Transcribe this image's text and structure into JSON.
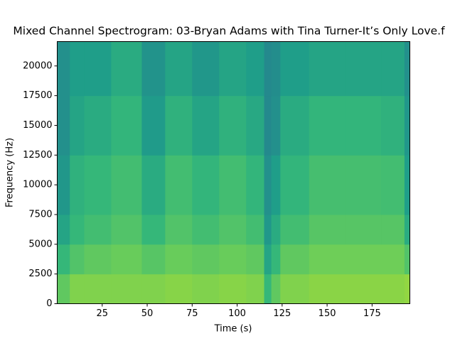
{
  "chart_data": {
    "type": "spectrogram",
    "title": "Mixed Channel Spectrogram: 03-Bryan Adams with Tina Turner-It’s Only Love.f",
    "xlabel": "Time (s)",
    "ylabel": "Frequency (Hz)",
    "xlim": [
      0,
      196
    ],
    "ylim": [
      0,
      22050
    ],
    "xticks": [
      25,
      50,
      75,
      100,
      125,
      150,
      175
    ],
    "yticks": [
      0,
      2500,
      5000,
      7500,
      10000,
      12500,
      15000,
      17500,
      20000
    ],
    "time_edges": [
      0,
      7,
      15,
      30,
      47,
      60,
      75,
      90,
      105,
      115,
      119,
      124,
      140,
      160,
      180,
      193,
      196
    ],
    "freq_edges": [
      0,
      2500,
      5000,
      7500,
      12500,
      17500,
      22050
    ],
    "colormap": [
      "#31688e",
      "#26828e",
      "#1f9e89",
      "#35b779",
      "#6ece58",
      "#b5de2b"
    ],
    "z": [
      [
        0.75,
        0.6,
        0.45,
        0.35,
        0.3,
        0.3
      ],
      [
        0.85,
        0.7,
        0.6,
        0.55,
        0.45,
        0.4
      ],
      [
        0.85,
        0.75,
        0.65,
        0.6,
        0.5,
        0.4
      ],
      [
        0.85,
        0.78,
        0.7,
        0.65,
        0.58,
        0.5
      ],
      [
        0.85,
        0.72,
        0.6,
        0.5,
        0.38,
        0.32
      ],
      [
        0.87,
        0.78,
        0.7,
        0.65,
        0.55,
        0.45
      ],
      [
        0.85,
        0.75,
        0.65,
        0.58,
        0.45,
        0.35
      ],
      [
        0.87,
        0.78,
        0.7,
        0.65,
        0.55,
        0.45
      ],
      [
        0.85,
        0.75,
        0.65,
        0.58,
        0.48,
        0.4
      ],
      [
        0.6,
        0.45,
        0.35,
        0.3,
        0.25,
        0.25
      ],
      [
        0.75,
        0.6,
        0.5,
        0.4,
        0.3,
        0.28
      ],
      [
        0.85,
        0.75,
        0.65,
        0.58,
        0.5,
        0.4
      ],
      [
        0.88,
        0.8,
        0.72,
        0.66,
        0.58,
        0.45
      ],
      [
        0.88,
        0.8,
        0.72,
        0.66,
        0.58,
        0.45
      ],
      [
        0.88,
        0.8,
        0.72,
        0.65,
        0.55,
        0.45
      ],
      [
        0.9,
        0.7,
        0.5,
        0.4,
        0.35,
        0.3
      ]
    ]
  }
}
